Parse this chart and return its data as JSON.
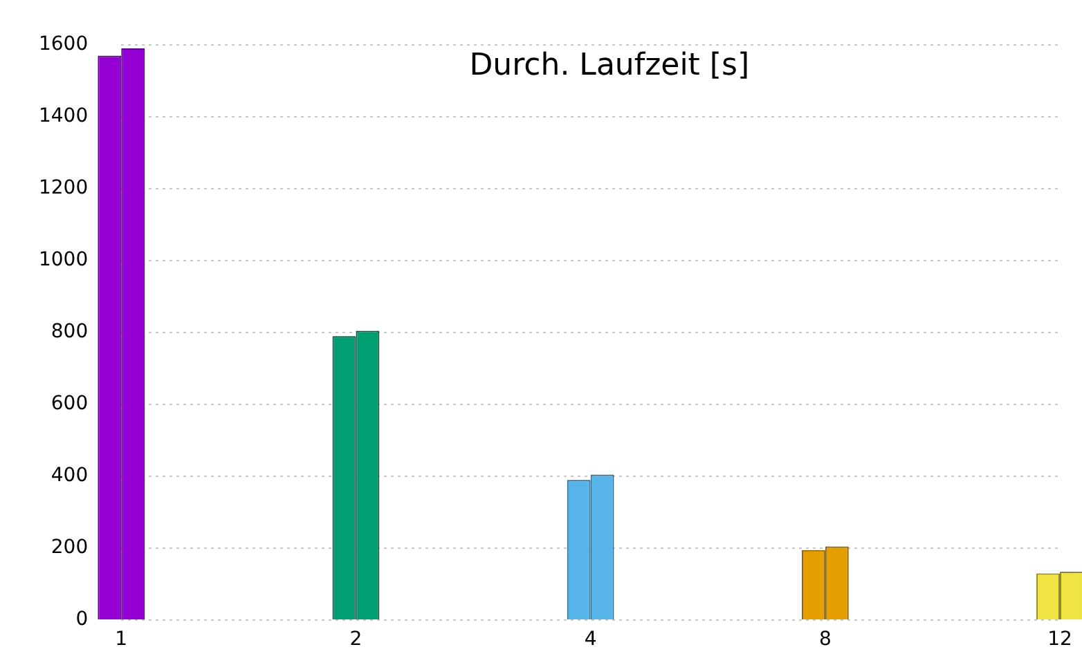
{
  "chart_data": {
    "type": "bar",
    "title": "Durch. Laufzeit [s]",
    "categories": [
      "1",
      "2",
      "4",
      "8",
      "12"
    ],
    "series": [
      {
        "colors": [
          "#9400d3",
          "#009e73",
          "#56b4e9",
          "#e69f00",
          "#f0e442"
        ],
        "values": [
          1570,
          790,
          390,
          195,
          130
        ]
      },
      {
        "colors": [
          "#9400d3",
          "#009e73",
          "#56b4e9",
          "#e69f00",
          "#f0e442"
        ],
        "values": [
          1590,
          805,
          405,
          205,
          135
        ]
      }
    ],
    "ylim": [
      0,
      1600
    ],
    "yticks": [
      0,
      200,
      400,
      600,
      800,
      1000,
      1200,
      1400,
      1600
    ],
    "grid": "y",
    "legend": false
  }
}
